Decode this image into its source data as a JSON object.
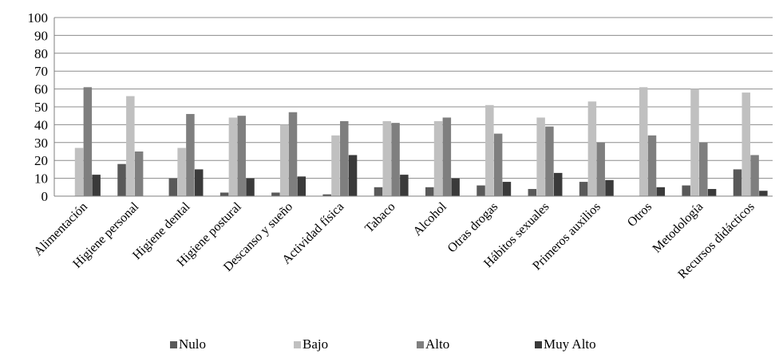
{
  "chart_data": {
    "type": "bar",
    "title": "",
    "xlabel": "",
    "ylabel": "",
    "ylim": [
      0,
      100
    ],
    "yticks": [
      0,
      10,
      20,
      30,
      40,
      50,
      60,
      70,
      80,
      90,
      100
    ],
    "grid": true,
    "legend": "bottom",
    "categories": [
      "Alimentación",
      "Higiene personal",
      "Higiene dental",
      "Higiene postural",
      "Descanso y sueño",
      "Actividad física",
      "Tabaco",
      "Alcohol",
      "Otras drogas",
      "Hábitos sexuales",
      "Primeros auxilios",
      "Otros",
      "Metodología",
      "Recursos didácticos"
    ],
    "series": [
      {
        "name": "Nulo",
        "color": "#595959",
        "values": [
          0,
          18,
          10,
          2,
          2,
          1,
          5,
          5,
          6,
          4,
          8,
          0,
          6,
          15
        ]
      },
      {
        "name": "Bajo",
        "color": "#c0c0c0",
        "values": [
          27,
          56,
          27,
          44,
          40,
          34,
          42,
          42,
          51,
          44,
          53,
          61,
          60,
          58
        ]
      },
      {
        "name": "Alto",
        "color": "#7f7f7f",
        "values": [
          61,
          25,
          46,
          45,
          47,
          42,
          41,
          44,
          35,
          39,
          30,
          34,
          30,
          23
        ]
      },
      {
        "name": "Muy Alto",
        "color": "#3a3a3a",
        "values": [
          12,
          0,
          15,
          10,
          11,
          23,
          12,
          10,
          8,
          13,
          9,
          5,
          4,
          3
        ]
      }
    ]
  }
}
